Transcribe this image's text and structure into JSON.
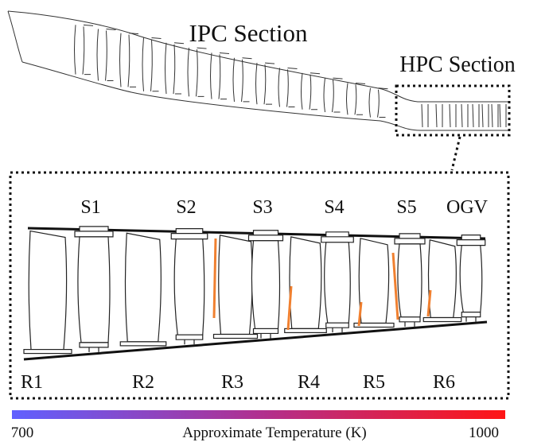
{
  "ipc_label": "IPC Section",
  "hpc_label": "HPC Section",
  "stators": [
    "S1",
    "S2",
    "S3",
    "S4",
    "S5",
    "OGV"
  ],
  "rotors": [
    "R1",
    "R2",
    "R3",
    "R4",
    "R5",
    "R6"
  ],
  "colorbar": {
    "min": "700",
    "label": "Approximate Temperature (K)",
    "max": "1000"
  }
}
